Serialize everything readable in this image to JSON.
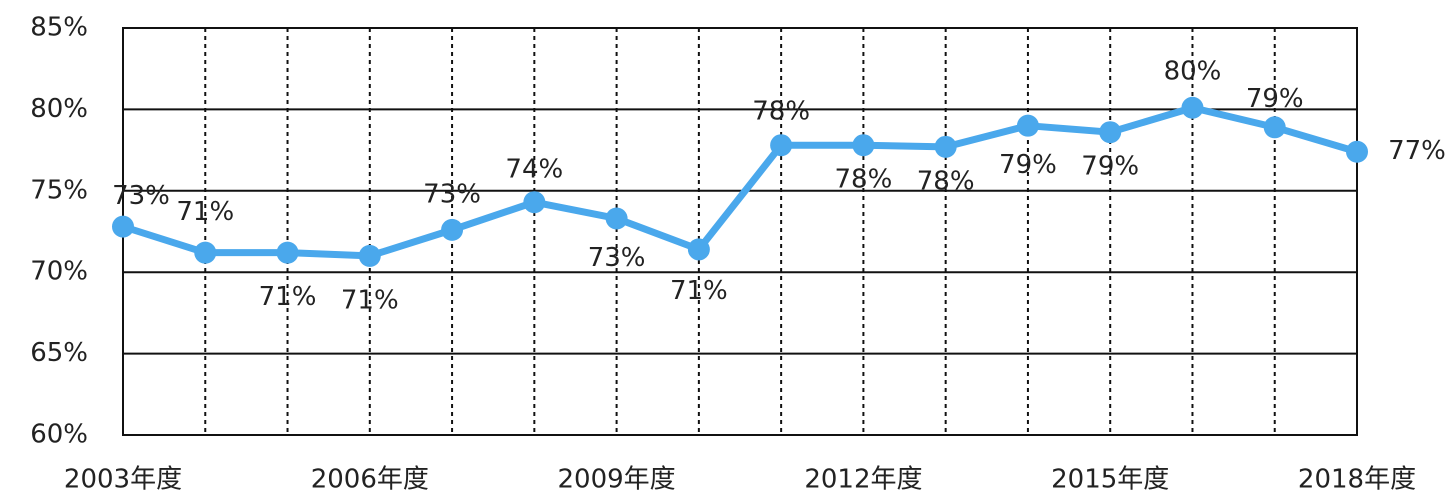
{
  "chart_data": {
    "type": "line",
    "categories": [
      "2003年度",
      null,
      null,
      "2006年度",
      null,
      null,
      "2009年度",
      null,
      null,
      "2012年度",
      null,
      null,
      "2015年度",
      null,
      null,
      "2018年度"
    ],
    "series": [
      {
        "color": "#4aa8ec",
        "values": [
          72.8,
          71.2,
          71.2,
          71.0,
          72.6,
          74.3,
          73.3,
          71.4,
          77.8,
          77.8,
          77.7,
          79.0,
          78.6,
          80.1,
          78.9,
          77.4
        ],
        "value_labels": [
          "73%",
          "71%",
          "71%",
          "71%",
          "73%",
          "74%",
          "73%",
          "71%",
          "78%",
          "78%",
          "78%",
          "79%",
          "79%",
          "80%",
          "79%",
          "77%"
        ]
      }
    ],
    "ylim": [
      60,
      85
    ],
    "yticks": [
      {
        "value": 60,
        "label": "60%"
      },
      {
        "value": 65,
        "label": "65%"
      },
      {
        "value": 70,
        "label": "70%"
      },
      {
        "value": 75,
        "label": "75%"
      },
      {
        "value": 80,
        "label": "80%"
      },
      {
        "value": 85,
        "label": "85%"
      }
    ],
    "grid": true
  }
}
